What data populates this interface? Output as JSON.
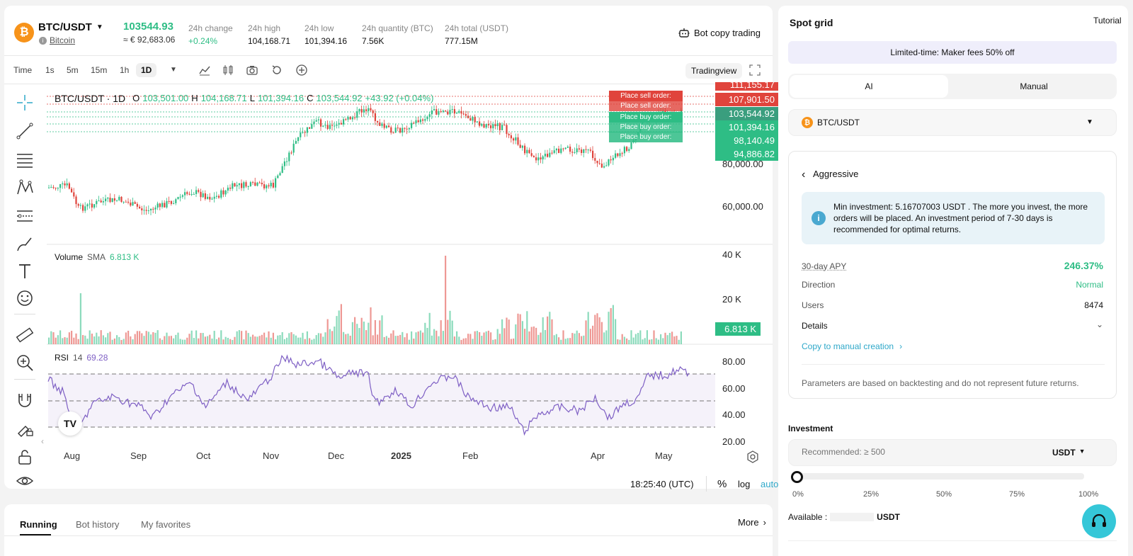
{
  "header": {
    "pair": "BTC/USDT",
    "coin_name": "Bitcoin",
    "price": "103544.93",
    "price_eur": "≈ € 92,683.06",
    "stats": [
      {
        "label": "24h change",
        "value": "+0.24%"
      },
      {
        "label": "24h high",
        "value": "104,168.71"
      },
      {
        "label": "24h low",
        "value": "101,394.16"
      },
      {
        "label": "24h quantity (BTC)",
        "value": "7.56K"
      },
      {
        "label": "24h total (USDT)",
        "value": "777.15M"
      }
    ],
    "bot_copy": "Bot copy trading"
  },
  "toolbar": {
    "intervals": [
      "Time",
      "1s",
      "5m",
      "15m",
      "1h",
      "1D"
    ],
    "active_interval": "1D",
    "tradingview": "Tradingview"
  },
  "chart_data": {
    "type": "candlestick",
    "legend": {
      "symbol": "BTC/USDT · 1D",
      "o_label": "O",
      "o": "103,501.00",
      "h_label": "H",
      "h": "104,168.71",
      "l_label": "L",
      "l": "101,394.16",
      "c_label": "C",
      "c": "103,544.92",
      "change": "+43.92 (+0.04%)"
    },
    "price_axis": [
      "80,000.00",
      "60,000.00"
    ],
    "price_tags": {
      "top": "111,155.17",
      "sell": "107,901.50",
      "current": "103,544.92",
      "low": "101,394.16",
      "buy1": "98,140.49",
      "buy2": "94,886.82"
    },
    "order_labels": {
      "sell": "Place sell order:",
      "sell_faded": "Place sell order:",
      "buy": "Place buy order:",
      "buy_faded1": "Place buy order:",
      "buy_faded2": "Place buy order:"
    },
    "volume": {
      "title": "Volume",
      "sma_label": "SMA",
      "sma_value": "6.813 K",
      "axis": [
        "40 K",
        "20 K"
      ],
      "tag": "6.813 K"
    },
    "rsi": {
      "title": "RSI",
      "period": "14",
      "value": "69.28",
      "axis": [
        "80.00",
        "60.00",
        "40.00",
        "20.00"
      ]
    },
    "x_labels": [
      "Aug",
      "Sep",
      "Oct",
      "Nov",
      "Dec",
      "2025",
      "Feb",
      "Apr",
      "May"
    ],
    "time": "18:25:40 (UTC)",
    "bottom_controls": {
      "percent": "%",
      "log": "log",
      "auto": "auto"
    }
  },
  "bottom_tabs": {
    "tabs": [
      "Running",
      "Bot history",
      "My favorites"
    ],
    "active": "Running",
    "more": "More"
  },
  "right_panel": {
    "title": "Spot grid",
    "tutorial": "Tutorial",
    "promo": "Limited-time: Maker fees 50% off",
    "mode_tabs": [
      "AI",
      "Manual"
    ],
    "active_mode": "AI",
    "pair": "BTC/USDT",
    "strategy": "Aggressive",
    "info": "Min investment: 5.16707003 USDT . The more you invest, the more orders will be placed. An investment period of 7-30 days is recommended for optimal returns.",
    "rows": [
      {
        "label": "30-day APY",
        "value": "246.37%"
      },
      {
        "label": "Direction",
        "value": "Normal"
      },
      {
        "label": "Users",
        "value": "8474"
      }
    ],
    "details": "Details",
    "copy_link": "Copy to manual creation",
    "disclaimer": "Parameters are based on backtesting and do not represent future returns.",
    "investment_label": "Investment",
    "investment_placeholder": "Recommended: ≥ 500",
    "currency": "USDT",
    "slider_marks": [
      "0%",
      "25%",
      "50%",
      "75%",
      "100%"
    ],
    "available_label": "Available :",
    "available_currency": "USDT"
  },
  "colors": {
    "up": "#2ebd85",
    "down": "#e0443c",
    "rsi": "#7e5fc4",
    "accent": "#2ea8c9"
  }
}
